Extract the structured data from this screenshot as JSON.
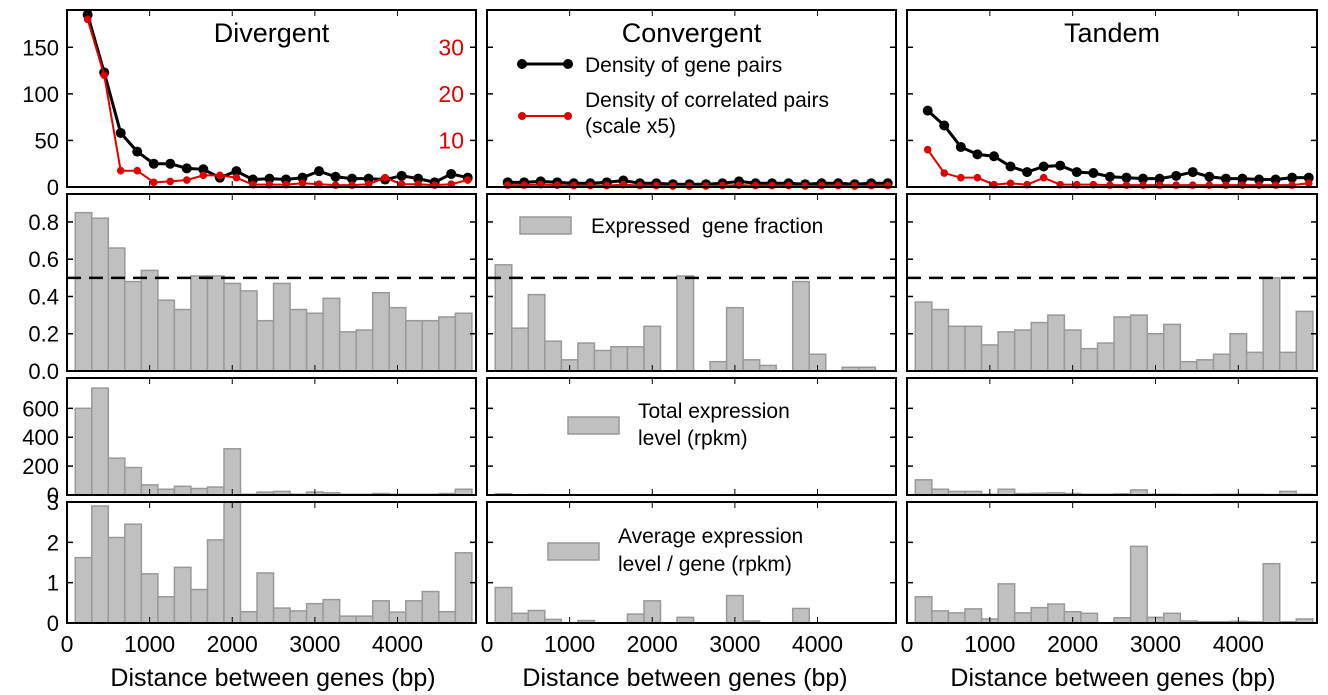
{
  "figure": {
    "xlabel": "Distance between genes (bp)",
    "columns": [
      "Divergent",
      "Convergent",
      "Tandem"
    ],
    "dashed_line": 0.5
  },
  "legends": {
    "density": {
      "series1": "Density of gene pairs",
      "series2_line1": "Density of correlated pairs",
      "series2_line2": "(scale x5)"
    },
    "fraction": "Expressed  gene fraction",
    "total": [
      "Total expression",
      "level (rpkm)"
    ],
    "average": [
      "Average expression",
      "level / gene (rpkm)"
    ]
  },
  "colors": {
    "density": "#000000",
    "correlated": "#e00000",
    "bar_fill": "#c0c0c0",
    "bar_stroke": "#999999"
  },
  "chart_data": [
    {
      "type": "line",
      "title": "Divergent",
      "xlabel": "",
      "ylabel": "",
      "xlim": [
        0,
        4950
      ],
      "ylim": [
        0,
        190
      ],
      "ylim_right": [
        0,
        38
      ],
      "yticks": [
        0,
        50,
        100,
        150
      ],
      "yticks_right": [
        10,
        20,
        30
      ],
      "x": [
        250,
        450,
        650,
        850,
        1050,
        1250,
        1450,
        1650,
        1850,
        2050,
        2250,
        2450,
        2650,
        2850,
        3050,
        3250,
        3450,
        3650,
        3850,
        4050,
        4250,
        4450,
        4650,
        4850
      ],
      "series": [
        {
          "name": "Density of gene pairs",
          "axis": "left",
          "values": [
            185,
            123,
            58,
            38,
            25,
            25,
            20,
            19,
            10,
            17,
            8,
            9,
            8,
            10,
            17,
            11,
            9,
            9,
            8,
            12,
            9,
            5,
            14,
            10
          ]
        },
        {
          "name": "Density of correlated pairs (scale x5)",
          "axis": "right",
          "values": [
            36,
            24,
            3.5,
            3.5,
            1,
            1.2,
            1.5,
            2.5,
            2.5,
            2,
            0.5,
            0.5,
            0.5,
            0.8,
            0.6,
            0.4,
            0.4,
            0.6,
            2,
            0.6,
            0.6,
            0.4,
            0.6,
            1.5
          ]
        }
      ]
    },
    {
      "type": "line",
      "title": "Convergent",
      "xlabel": "",
      "ylabel": "",
      "xlim": [
        0,
        4950
      ],
      "ylim": [
        0,
        190
      ],
      "ylim_right": [
        0,
        38
      ],
      "x": [
        250,
        450,
        650,
        850,
        1050,
        1250,
        1450,
        1650,
        1850,
        2050,
        2250,
        2450,
        2650,
        2850,
        3050,
        3250,
        3450,
        3650,
        3850,
        4050,
        4250,
        4450,
        4650,
        4850
      ],
      "series": [
        {
          "name": "Density of gene pairs",
          "axis": "left",
          "values": [
            5,
            5,
            6,
            5,
            4,
            4,
            5,
            7,
            4,
            4,
            3,
            3,
            3,
            4,
            6,
            4,
            4,
            4,
            3,
            4,
            4,
            3,
            4,
            4
          ]
        },
        {
          "name": "Density of correlated pairs (scale x5)",
          "axis": "right",
          "values": [
            0.4,
            0.4,
            0.5,
            0.4,
            0.3,
            0.3,
            0.3,
            0.5,
            0.3,
            0.3,
            0.2,
            0.2,
            0.2,
            0.3,
            0.4,
            0.3,
            0.3,
            0.3,
            0.2,
            0.3,
            0.3,
            0.2,
            0.3,
            0.3
          ]
        }
      ]
    },
    {
      "type": "line",
      "title": "Tandem",
      "xlabel": "",
      "ylabel": "",
      "xlim": [
        0,
        4950
      ],
      "ylim": [
        0,
        190
      ],
      "ylim_right": [
        0,
        38
      ],
      "x": [
        250,
        450,
        650,
        850,
        1050,
        1250,
        1450,
        1650,
        1850,
        2050,
        2250,
        2450,
        2650,
        2850,
        3050,
        3250,
        3450,
        3650,
        3850,
        4050,
        4250,
        4450,
        4650,
        4850
      ],
      "series": [
        {
          "name": "Density of gene pairs",
          "axis": "left",
          "values": [
            82,
            66,
            43,
            35,
            33,
            22,
            16,
            22,
            23,
            16,
            15,
            11,
            10,
            9,
            9,
            12,
            16,
            11,
            9,
            9,
            8,
            8,
            10,
            10
          ]
        },
        {
          "name": "Density of correlated pairs (scale x5)",
          "axis": "right",
          "values": [
            8,
            3,
            2,
            2,
            0.5,
            0.8,
            0.5,
            2,
            0.5,
            0.5,
            0.5,
            0.4,
            0.4,
            0.4,
            0.4,
            0.4,
            0.4,
            0.4,
            0.4,
            0.4,
            0.4,
            0.4,
            0.4,
            0.8
          ]
        }
      ]
    },
    {
      "type": "bar",
      "title": "Expressed gene fraction — Divergent",
      "xlabel": "",
      "ylabel": "",
      "ylim": [
        0,
        0.95
      ],
      "yticks": [
        0.0,
        0.2,
        0.4,
        0.6,
        0.8
      ],
      "bin_width": 200,
      "bin_starts": [
        100,
        300,
        500,
        700,
        900,
        1100,
        1300,
        1500,
        1700,
        1900,
        2100,
        2300,
        2500,
        2700,
        2900,
        3100,
        3300,
        3500,
        3700,
        3900,
        4100,
        4300,
        4500,
        4700,
        4900
      ],
      "values": [
        0.85,
        0.82,
        0.66,
        0.48,
        0.54,
        0.38,
        0.33,
        0.51,
        0.51,
        0.47,
        0.43,
        0.27,
        0.47,
        0.33,
        0.31,
        0.39,
        0.21,
        0.22,
        0.42,
        0.34,
        0.27,
        0.27,
        0.29,
        0.31,
        0
      ]
    },
    {
      "type": "bar",
      "title": "Expressed gene fraction — Convergent",
      "xlabel": "",
      "ylabel": "",
      "ylim": [
        0,
        0.95
      ],
      "bin_width": 200,
      "bin_starts": [
        100,
        300,
        500,
        700,
        900,
        1100,
        1300,
        1500,
        1700,
        1900,
        2100,
        2300,
        2500,
        2700,
        2900,
        3100,
        3300,
        3500,
        3700,
        3900,
        4100,
        4300,
        4500,
        4700,
        4900
      ],
      "values": [
        0.57,
        0.23,
        0.41,
        0.16,
        0.06,
        0.15,
        0.11,
        0.13,
        0.13,
        0.24,
        0,
        0.51,
        0,
        0.05,
        0.34,
        0.06,
        0.03,
        0,
        0.48,
        0.09,
        0,
        0.02,
        0.02,
        0,
        0
      ]
    },
    {
      "type": "bar",
      "title": "Expressed gene fraction — Tandem",
      "xlabel": "",
      "ylabel": "",
      "ylim": [
        0,
        0.95
      ],
      "bin_width": 200,
      "bin_starts": [
        100,
        300,
        500,
        700,
        900,
        1100,
        1300,
        1500,
        1700,
        1900,
        2100,
        2300,
        2500,
        2700,
        2900,
        3100,
        3300,
        3500,
        3700,
        3900,
        4100,
        4300,
        4500,
        4700,
        4900
      ],
      "values": [
        0.37,
        0.33,
        0.24,
        0.24,
        0.14,
        0.21,
        0.22,
        0.26,
        0.3,
        0.22,
        0.12,
        0.15,
        0.29,
        0.3,
        0.2,
        0.25,
        0.05,
        0.06,
        0.09,
        0.2,
        0.1,
        0.5,
        0.1,
        0.32,
        0
      ]
    },
    {
      "type": "bar",
      "title": "Total expression level (rpkm) — Divergent",
      "xlabel": "",
      "ylabel": "",
      "ylim": [
        0,
        810
      ],
      "yticks": [
        0,
        200,
        400,
        600
      ],
      "bin_width": 200,
      "bin_starts": [
        100,
        300,
        500,
        700,
        900,
        1100,
        1300,
        1500,
        1700,
        1900,
        2100,
        2300,
        2500,
        2700,
        2900,
        3100,
        3300,
        3500,
        3700,
        3900,
        4100,
        4300,
        4500,
        4700,
        4900
      ],
      "values": [
        600,
        740,
        255,
        190,
        70,
        40,
        60,
        45,
        55,
        320,
        5,
        20,
        25,
        5,
        20,
        15,
        5,
        5,
        10,
        5,
        5,
        5,
        10,
        40,
        0
      ]
    },
    {
      "type": "bar",
      "title": "Total expression level (rpkm) — Convergent",
      "xlabel": "",
      "ylabel": "",
      "ylim": [
        0,
        810
      ],
      "bin_width": 200,
      "bin_starts": [
        100,
        300,
        500,
        700,
        900,
        1100,
        1300,
        1500,
        1700,
        1900,
        2100,
        2300,
        2500,
        2700,
        2900,
        3100,
        3300,
        3500,
        3700,
        3900,
        4100,
        4300,
        4500,
        4700,
        4900
      ],
      "values": [
        8,
        2,
        3,
        1,
        1,
        1,
        1,
        1,
        2,
        1,
        0,
        2,
        1,
        1,
        2,
        1,
        1,
        1,
        2,
        1,
        0,
        1,
        1,
        0,
        0
      ]
    },
    {
      "type": "bar",
      "title": "Total expression level (rpkm) — Tandem",
      "xlabel": "",
      "ylabel": "",
      "ylim": [
        0,
        810
      ],
      "bin_width": 200,
      "bin_starts": [
        100,
        300,
        500,
        700,
        900,
        1100,
        1300,
        1500,
        1700,
        1900,
        2100,
        2300,
        2500,
        2700,
        2900,
        3100,
        3300,
        3500,
        3700,
        3900,
        4100,
        4300,
        4500,
        4700,
        4900
      ],
      "values": [
        105,
        40,
        25,
        25,
        5,
        40,
        10,
        12,
        15,
        10,
        5,
        5,
        8,
        35,
        5,
        5,
        3,
        3,
        5,
        5,
        5,
        3,
        25,
        5,
        0
      ]
    },
    {
      "type": "bar",
      "title": "Average expression level / gene (rpkm) — Divergent",
      "xlabel": "",
      "ylabel": "",
      "ylim": [
        0,
        3.0
      ],
      "yticks": [
        0,
        1,
        2,
        3
      ],
      "bin_width": 200,
      "bin_starts": [
        100,
        300,
        500,
        700,
        900,
        1100,
        1300,
        1500,
        1700,
        1900,
        2100,
        2300,
        2500,
        2700,
        2900,
        3100,
        3300,
        3500,
        3700,
        3900,
        4100,
        4300,
        4500,
        4700,
        4900
      ],
      "values": [
        1.62,
        2.9,
        2.12,
        2.45,
        1.22,
        0.65,
        1.38,
        0.83,
        2.06,
        3.0,
        0.28,
        1.24,
        0.37,
        0.3,
        0.48,
        0.58,
        0.17,
        0.17,
        0.55,
        0.27,
        0.55,
        0.78,
        0.28,
        1.74,
        0
      ]
    },
    {
      "type": "bar",
      "title": "Average expression level / gene (rpkm) — Convergent",
      "xlabel": "",
      "ylabel": "",
      "ylim": [
        0,
        3.0
      ],
      "bin_width": 200,
      "bin_starts": [
        100,
        300,
        500,
        700,
        900,
        1100,
        1300,
        1500,
        1700,
        1900,
        2100,
        2300,
        2500,
        2700,
        2900,
        3100,
        3300,
        3500,
        3700,
        3900,
        4100,
        4300,
        4500,
        4700,
        4900
      ],
      "values": [
        0.88,
        0.24,
        0.31,
        0.09,
        0,
        0.06,
        0,
        0,
        0.22,
        0.55,
        0,
        0.14,
        0,
        0,
        0.68,
        0.05,
        0,
        0,
        0.36,
        0,
        0,
        0,
        0,
        0,
        0
      ]
    },
    {
      "type": "bar",
      "title": "Average expression level / gene (rpkm) — Tandem",
      "xlabel": "",
      "ylabel": "",
      "ylim": [
        0,
        3.0
      ],
      "bin_width": 200,
      "bin_starts": [
        100,
        300,
        500,
        700,
        900,
        1100,
        1300,
        1500,
        1700,
        1900,
        2100,
        2300,
        2500,
        2700,
        2900,
        3100,
        3300,
        3500,
        3700,
        3900,
        4100,
        4300,
        4500,
        4700,
        4900
      ],
      "values": [
        0.65,
        0.3,
        0.25,
        0.35,
        0.1,
        0.97,
        0.25,
        0.38,
        0.47,
        0.28,
        0.24,
        0,
        0.13,
        1.9,
        0.14,
        0.24,
        0.05,
        0.03,
        0.03,
        0.04,
        0.03,
        1.47,
        0.03,
        0.1,
        0
      ]
    }
  ],
  "x_ticks": [
    0,
    1000,
    2000,
    3000,
    4000
  ]
}
